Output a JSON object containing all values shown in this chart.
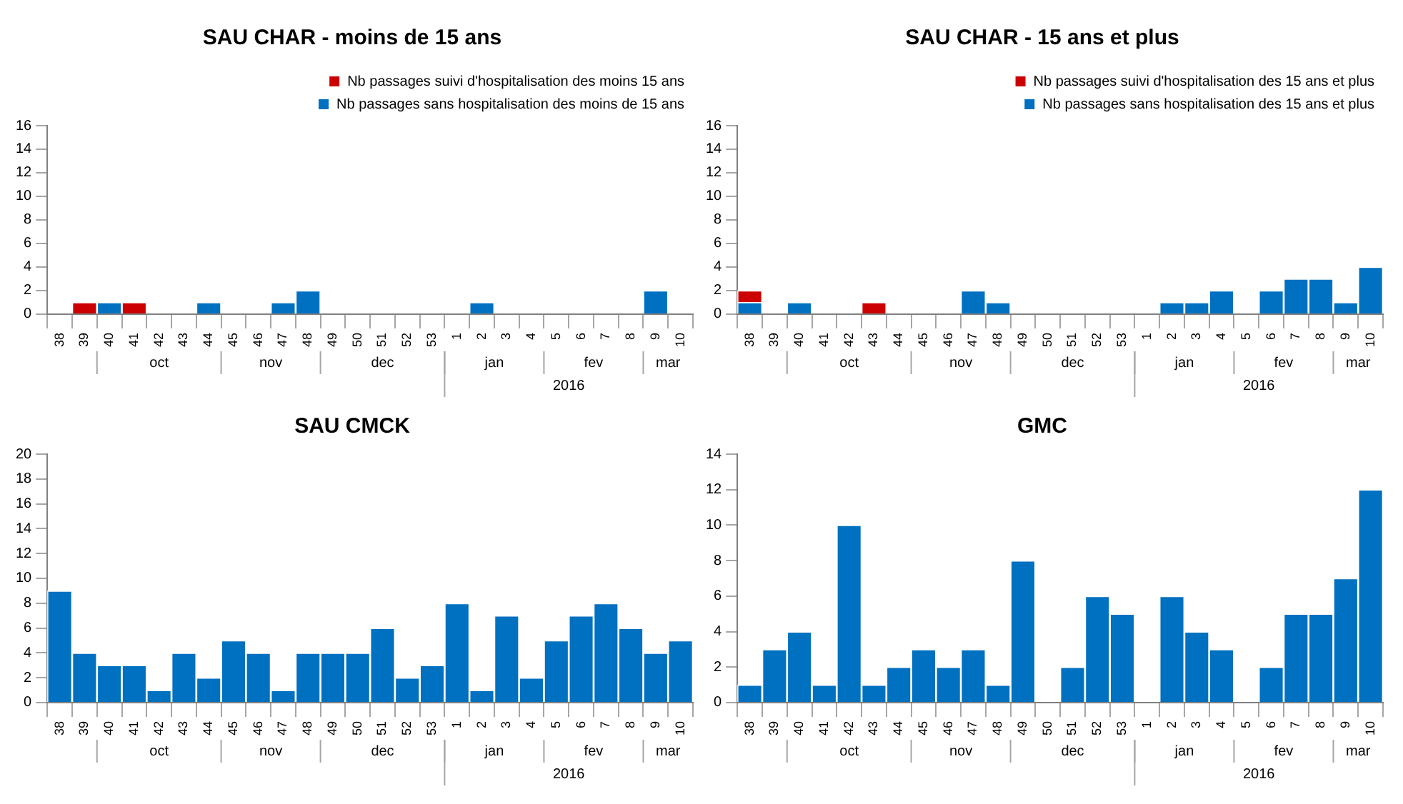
{
  "chart_data": [
    {
      "type": "bar",
      "title": "SAU CHAR - moins de 15 ans",
      "stacked": true,
      "legend": "top right",
      "categories": [
        "38",
        "39",
        "40",
        "41",
        "42",
        "43",
        "44",
        "45",
        "46",
        "47",
        "48",
        "49",
        "50",
        "51",
        "52",
        "53",
        "1",
        "2",
        "3",
        "4",
        "5",
        "6",
        "7",
        "8",
        "9",
        "10"
      ],
      "ylim": [
        0,
        16
      ],
      "yticks": [
        0,
        2,
        4,
        6,
        8,
        10,
        12,
        14,
        16
      ],
      "series": [
        {
          "name": "Nb passages sans hospitalisation des moins de 15 ans",
          "color": "#0070c0",
          "values": [
            0,
            0,
            1,
            0,
            0,
            0,
            1,
            0,
            0,
            1,
            2,
            0,
            0,
            0,
            0,
            0,
            0,
            1,
            0,
            0,
            0,
            0,
            0,
            0,
            2,
            0
          ]
        },
        {
          "name": "Nb passages suivi d'hospitalisation des moins 15 ans",
          "color": "#cc0000",
          "values": [
            0,
            1,
            0,
            1,
            0,
            0,
            0,
            0,
            0,
            0,
            0,
            0,
            0,
            0,
            0,
            0,
            0,
            0,
            0,
            0,
            0,
            0,
            0,
            0,
            0,
            0
          ]
        }
      ],
      "annotations": [
        "oct",
        "nov",
        "dec",
        "jan",
        "fev",
        "mar",
        "2016"
      ]
    },
    {
      "type": "bar",
      "title": "SAU CHAR - 15 ans et plus",
      "stacked": true,
      "legend": "top right",
      "categories": [
        "38",
        "39",
        "40",
        "41",
        "42",
        "43",
        "44",
        "45",
        "46",
        "47",
        "48",
        "49",
        "50",
        "51",
        "52",
        "53",
        "1",
        "2",
        "3",
        "4",
        "5",
        "6",
        "7",
        "8",
        "9",
        "10"
      ],
      "ylim": [
        0,
        16
      ],
      "yticks": [
        0,
        2,
        4,
        6,
        8,
        10,
        12,
        14,
        16
      ],
      "series": [
        {
          "name": "Nb passages sans hospitalisation des 15 ans et plus",
          "color": "#0070c0",
          "values": [
            1,
            0,
            1,
            0,
            0,
            0,
            0,
            0,
            0,
            2,
            1,
            0,
            0,
            0,
            0,
            0,
            0,
            1,
            1,
            2,
            0,
            2,
            3,
            3,
            1,
            4
          ]
        },
        {
          "name": "Nb passages suivi d'hospitalisation des 15 ans et plus",
          "color": "#cc0000",
          "values": [
            1,
            0,
            0,
            0,
            0,
            1,
            0,
            0,
            0,
            0,
            0,
            0,
            0,
            0,
            0,
            0,
            0,
            0,
            0,
            0,
            0,
            0,
            0,
            0,
            0,
            0
          ]
        }
      ],
      "annotations": [
        "oct",
        "nov",
        "dec",
        "jan",
        "fev",
        "mar",
        "2016"
      ]
    },
    {
      "type": "bar",
      "title": "SAU CMCK",
      "categories": [
        "38",
        "39",
        "40",
        "41",
        "42",
        "43",
        "44",
        "45",
        "46",
        "47",
        "48",
        "49",
        "50",
        "51",
        "52",
        "53",
        "1",
        "2",
        "3",
        "4",
        "5",
        "6",
        "7",
        "8",
        "9",
        "10"
      ],
      "ylim": [
        0,
        20
      ],
      "yticks": [
        0,
        2,
        4,
        6,
        8,
        10,
        12,
        14,
        16,
        18,
        20
      ],
      "series": [
        {
          "color": "#0070c0",
          "values": [
            9,
            4,
            3,
            3,
            1,
            4,
            2,
            5,
            4,
            1,
            4,
            4,
            4,
            6,
            2,
            3,
            8,
            1,
            7,
            2,
            5,
            7,
            8,
            6,
            4,
            5
          ]
        }
      ],
      "annotations": [
        "oct",
        "nov",
        "dec",
        "jan",
        "fev",
        "mar",
        "2016"
      ]
    },
    {
      "type": "bar",
      "title": "GMC",
      "categories": [
        "38",
        "39",
        "40",
        "41",
        "42",
        "43",
        "44",
        "45",
        "46",
        "47",
        "48",
        "49",
        "50",
        "51",
        "52",
        "53",
        "1",
        "2",
        "3",
        "4",
        "5",
        "6",
        "7",
        "8",
        "9",
        "10"
      ],
      "ylim": [
        0,
        14
      ],
      "yticks": [
        0,
        2,
        4,
        6,
        8,
        10,
        12,
        14
      ],
      "series": [
        {
          "color": "#0070c0",
          "values": [
            1,
            3,
            4,
            1,
            10,
            1,
            2,
            3,
            2,
            3,
            1,
            8,
            0,
            2,
            6,
            5,
            0,
            6,
            4,
            3,
            0,
            2,
            5,
            5,
            7,
            12
          ]
        }
      ],
      "annotations": [
        "oct",
        "nov",
        "dec",
        "jan",
        "fev",
        "mar",
        "2016"
      ]
    }
  ]
}
